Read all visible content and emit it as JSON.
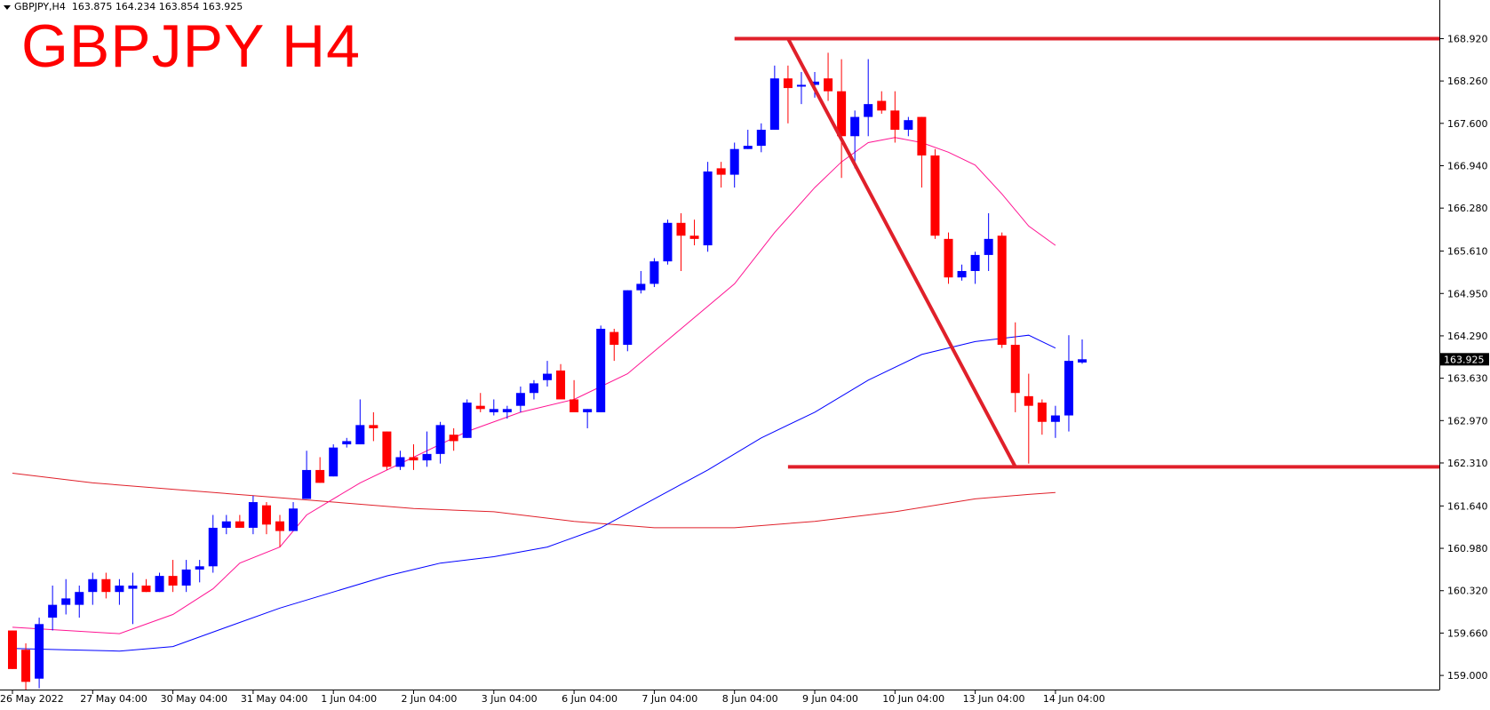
{
  "header": {
    "symbol_tf": "GBPJPY,H4",
    "ohlc": "163.875 164.234 163.854 163.925"
  },
  "overlay_title": "GBPJPY H4",
  "price_label": "163.925",
  "colors": {
    "bull": "#0000ff",
    "bear": "#ff0000",
    "ma_fast": "#ff1493",
    "ma_mid": "#0000ff",
    "ma_slow": "#e0202a",
    "drawn": "#e0202a",
    "axis": "#000000"
  },
  "chart_data": {
    "type": "candlestick",
    "y_axis": {
      "ticks": [
        168.92,
        168.26,
        167.6,
        166.94,
        166.28,
        165.61,
        164.95,
        164.29,
        163.63,
        162.97,
        162.31,
        161.64,
        160.98,
        160.32,
        159.66,
        159.0
      ],
      "tick_labels": [
        "168.920",
        "168.260",
        "167.600",
        "166.940",
        "166.280",
        "165.610",
        "164.950",
        "164.290",
        "163.630",
        "162.970",
        "162.310",
        "161.640",
        "160.980",
        "160.320",
        "159.660",
        "159.000"
      ],
      "range": [
        158.78,
        169.3
      ]
    },
    "x_axis": {
      "labels": [
        {
          "bar": 0,
          "text": "26 May 2022"
        },
        {
          "bar": 6,
          "text": "27 May 04:00"
        },
        {
          "bar": 12,
          "text": "30 May 04:00"
        },
        {
          "bar": 18,
          "text": "31 May 04:00"
        },
        {
          "bar": 24,
          "text": "1 Jun 04:00"
        },
        {
          "bar": 30,
          "text": "2 Jun 04:00"
        },
        {
          "bar": 36,
          "text": "3 Jun 04:00"
        },
        {
          "bar": 42,
          "text": "6 Jun 04:00"
        },
        {
          "bar": 48,
          "text": "7 Jun 04:00"
        },
        {
          "bar": 54,
          "text": "8 Jun 04:00"
        },
        {
          "bar": 60,
          "text": "9 Jun 04:00"
        },
        {
          "bar": 66,
          "text": "10 Jun 04:00"
        },
        {
          "bar": 72,
          "text": "13 Jun 04:00"
        },
        {
          "bar": 78,
          "text": "14 Jun 04:00"
        }
      ]
    },
    "candles": [
      [
        159.7,
        159.7,
        159.1,
        159.1
      ],
      [
        159.4,
        159.5,
        158.78,
        158.9
      ],
      [
        158.95,
        159.9,
        158.8,
        159.8
      ],
      [
        159.9,
        160.4,
        159.7,
        160.1
      ],
      [
        160.1,
        160.5,
        159.95,
        160.2
      ],
      [
        160.1,
        160.4,
        159.9,
        160.3
      ],
      [
        160.3,
        160.6,
        160.1,
        160.5
      ],
      [
        160.5,
        160.6,
        160.2,
        160.3
      ],
      [
        160.3,
        160.5,
        160.1,
        160.4
      ],
      [
        160.35,
        160.6,
        159.8,
        160.4
      ],
      [
        160.4,
        160.5,
        160.3,
        160.3
      ],
      [
        160.3,
        160.6,
        160.3,
        160.55
      ],
      [
        160.55,
        160.8,
        160.3,
        160.4
      ],
      [
        160.4,
        160.8,
        160.3,
        160.65
      ],
      [
        160.65,
        160.8,
        160.45,
        160.7
      ],
      [
        160.7,
        161.5,
        160.6,
        161.3
      ],
      [
        161.3,
        161.5,
        161.2,
        161.4
      ],
      [
        161.4,
        161.5,
        161.3,
        161.3
      ],
      [
        161.3,
        161.8,
        161.2,
        161.7
      ],
      [
        161.65,
        161.7,
        161.2,
        161.35
      ],
      [
        161.4,
        161.5,
        161.0,
        161.25
      ],
      [
        161.25,
        161.7,
        161.25,
        161.6
      ],
      [
        161.75,
        162.5,
        161.75,
        162.2
      ],
      [
        162.2,
        162.4,
        162.0,
        162.0
      ],
      [
        162.1,
        162.6,
        162.1,
        162.55
      ],
      [
        162.6,
        162.7,
        162.55,
        162.65
      ],
      [
        162.6,
        163.3,
        162.6,
        162.9
      ],
      [
        162.9,
        163.1,
        162.65,
        162.85
      ],
      [
        162.8,
        162.8,
        162.2,
        162.25
      ],
      [
        162.25,
        162.5,
        162.2,
        162.4
      ],
      [
        162.4,
        162.6,
        162.2,
        162.35
      ],
      [
        162.35,
        162.8,
        162.25,
        162.45
      ],
      [
        162.45,
        162.95,
        162.3,
        162.9
      ],
      [
        162.75,
        162.85,
        162.5,
        162.65
      ],
      [
        162.7,
        163.3,
        162.7,
        163.25
      ],
      [
        163.2,
        163.4,
        163.1,
        163.15
      ],
      [
        163.1,
        163.3,
        163.05,
        163.15
      ],
      [
        163.1,
        163.2,
        163.0,
        163.15
      ],
      [
        163.2,
        163.5,
        163.1,
        163.4
      ],
      [
        163.4,
        163.6,
        163.3,
        163.55
      ],
      [
        163.6,
        163.9,
        163.5,
        163.7
      ],
      [
        163.75,
        163.85,
        163.35,
        163.3
      ],
      [
        163.3,
        163.6,
        163.15,
        163.1
      ],
      [
        163.1,
        163.15,
        162.85,
        163.15
      ],
      [
        163.1,
        164.45,
        163.1,
        164.4
      ],
      [
        164.35,
        164.4,
        163.9,
        164.15
      ],
      [
        164.15,
        165.0,
        164.05,
        165.0
      ],
      [
        165.0,
        165.3,
        164.95,
        165.1
      ],
      [
        165.1,
        165.5,
        165.05,
        165.45
      ],
      [
        165.45,
        166.1,
        165.4,
        166.05
      ],
      [
        166.05,
        166.2,
        165.3,
        165.85
      ],
      [
        165.85,
        166.1,
        165.7,
        165.8
      ],
      [
        165.7,
        167.0,
        165.6,
        166.85
      ],
      [
        166.9,
        167.0,
        166.6,
        166.8
      ],
      [
        166.8,
        167.3,
        166.6,
        167.2
      ],
      [
        167.2,
        167.5,
        167.2,
        167.25
      ],
      [
        167.25,
        167.6,
        167.15,
        167.5
      ],
      [
        167.5,
        168.5,
        167.5,
        168.3
      ],
      [
        168.3,
        168.5,
        167.6,
        168.15
      ],
      [
        168.2,
        168.4,
        167.9,
        168.2
      ],
      [
        168.2,
        168.4,
        168.0,
        168.25
      ],
      [
        168.3,
        168.7,
        167.95,
        168.1
      ],
      [
        168.1,
        168.6,
        166.75,
        167.4
      ],
      [
        167.4,
        167.8,
        166.9,
        167.7
      ],
      [
        167.7,
        168.6,
        167.4,
        167.9
      ],
      [
        167.95,
        168.1,
        167.75,
        167.8
      ],
      [
        167.8,
        168.1,
        167.3,
        167.5
      ],
      [
        167.5,
        167.7,
        167.4,
        167.65
      ],
      [
        167.7,
        167.7,
        166.6,
        167.1
      ],
      [
        167.1,
        167.2,
        165.8,
        165.85
      ],
      [
        165.8,
        165.9,
        165.1,
        165.2
      ],
      [
        165.2,
        165.4,
        165.15,
        165.3
      ],
      [
        165.3,
        165.6,
        165.1,
        165.55
      ],
      [
        165.55,
        166.2,
        165.3,
        165.8
      ],
      [
        165.85,
        165.9,
        164.1,
        164.15
      ],
      [
        164.15,
        164.5,
        163.1,
        163.4
      ],
      [
        163.35,
        163.7,
        162.3,
        163.2
      ],
      [
        163.25,
        163.3,
        162.75,
        162.95
      ],
      [
        162.95,
        163.2,
        162.7,
        163.05
      ],
      [
        163.05,
        164.3,
        162.8,
        163.9
      ],
      [
        163.875,
        164.234,
        163.854,
        163.925
      ]
    ],
    "ma_fast": [
      [
        0,
        159.75
      ],
      [
        4,
        159.7
      ],
      [
        8,
        159.65
      ],
      [
        12,
        159.95
      ],
      [
        15,
        160.35
      ],
      [
        17,
        160.75
      ],
      [
        20,
        161.0
      ],
      [
        22,
        161.5
      ],
      [
        26,
        162.0
      ],
      [
        30,
        162.4
      ],
      [
        34,
        162.8
      ],
      [
        38,
        163.1
      ],
      [
        42,
        163.3
      ],
      [
        46,
        163.7
      ],
      [
        50,
        164.4
      ],
      [
        54,
        165.1
      ],
      [
        57,
        165.9
      ],
      [
        60,
        166.6
      ],
      [
        62,
        167.0
      ],
      [
        64,
        167.3
      ],
      [
        66,
        167.38
      ],
      [
        68,
        167.3
      ],
      [
        70,
        167.15
      ],
      [
        72,
        166.95
      ],
      [
        74,
        166.5
      ],
      [
        76,
        166.0
      ],
      [
        78,
        165.7
      ]
    ],
    "ma_mid": [
      [
        0,
        159.42
      ],
      [
        4,
        159.4
      ],
      [
        8,
        159.38
      ],
      [
        12,
        159.45
      ],
      [
        16,
        159.75
      ],
      [
        20,
        160.05
      ],
      [
        24,
        160.3
      ],
      [
        28,
        160.55
      ],
      [
        32,
        160.75
      ],
      [
        36,
        160.85
      ],
      [
        40,
        161.0
      ],
      [
        44,
        161.3
      ],
      [
        48,
        161.75
      ],
      [
        52,
        162.2
      ],
      [
        56,
        162.7
      ],
      [
        60,
        163.1
      ],
      [
        64,
        163.6
      ],
      [
        68,
        164.0
      ],
      [
        72,
        164.2
      ],
      [
        76,
        164.3
      ],
      [
        78,
        164.1
      ]
    ],
    "ma_slow": [
      [
        0,
        162.15
      ],
      [
        6,
        162.0
      ],
      [
        12,
        161.9
      ],
      [
        18,
        161.8
      ],
      [
        24,
        161.7
      ],
      [
        30,
        161.6
      ],
      [
        36,
        161.55
      ],
      [
        42,
        161.4
      ],
      [
        48,
        161.3
      ],
      [
        54,
        161.3
      ],
      [
        60,
        161.4
      ],
      [
        66,
        161.55
      ],
      [
        72,
        161.75
      ],
      [
        76,
        161.82
      ],
      [
        78,
        161.85
      ]
    ],
    "drawn_lines": {
      "resistance": 168.92,
      "support": 162.25,
      "trendline": [
        [
          58.0,
          168.92
        ],
        [
          75.0,
          162.25
        ]
      ]
    }
  }
}
